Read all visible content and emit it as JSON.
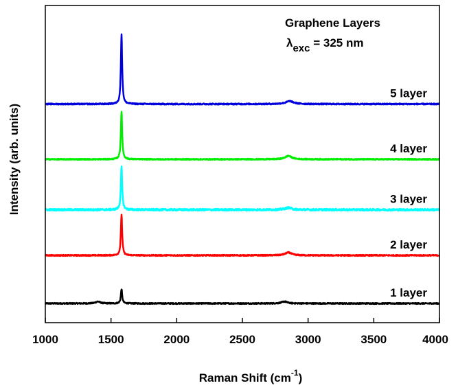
{
  "chart_data": {
    "type": "line",
    "title": "",
    "xlabel": "Raman Shift (cm",
    "xlabel_sup": "-1",
    "xlabel_close": ")",
    "ylabel": "Intensity (arb. units)",
    "xlim": [
      1000,
      4000
    ],
    "ylim": [
      0,
      6.6
    ],
    "x_ticks": [
      1000,
      1500,
      2000,
      2500,
      3000,
      3500,
      4000
    ],
    "y_ticks_shown": false,
    "grid": false,
    "legend": "none",
    "annotation": {
      "line1": "Graphene Layers",
      "lambda": "λ",
      "sub": "exc",
      "rest": " = 325 nm"
    },
    "series": [
      {
        "name": "1 layer",
        "color": "#000000",
        "baseline": 0.4,
        "noise": 0.012,
        "peaks": [
          {
            "x": 1580,
            "height": 0.3,
            "width": 6
          },
          {
            "x": 1400,
            "height": 0.04,
            "width": 20
          },
          {
            "x": 2820,
            "height": 0.04,
            "width": 25
          }
        ]
      },
      {
        "name": "2 layer",
        "color": "#ff0000",
        "baseline": 1.4,
        "noise": 0.012,
        "peaks": [
          {
            "x": 1580,
            "height": 0.85,
            "width": 6
          },
          {
            "x": 2850,
            "height": 0.06,
            "width": 30
          }
        ]
      },
      {
        "name": "3 layer",
        "color": "#00ffff",
        "baseline": 2.35,
        "noise": 0.02,
        "peaks": [
          {
            "x": 1580,
            "height": 0.9,
            "width": 6
          },
          {
            "x": 2850,
            "height": 0.04,
            "width": 30
          }
        ]
      },
      {
        "name": "4 layer",
        "color": "#00ee00",
        "baseline": 3.4,
        "noise": 0.012,
        "peaks": [
          {
            "x": 1580,
            "height": 1.0,
            "width": 6
          },
          {
            "x": 2850,
            "height": 0.07,
            "width": 30
          }
        ]
      },
      {
        "name": "5 layer",
        "color": "#0000dd",
        "baseline": 4.55,
        "noise": 0.012,
        "peaks": [
          {
            "x": 1580,
            "height": 1.45,
            "width": 6
          },
          {
            "x": 2860,
            "height": 0.06,
            "width": 35
          }
        ]
      }
    ]
  }
}
